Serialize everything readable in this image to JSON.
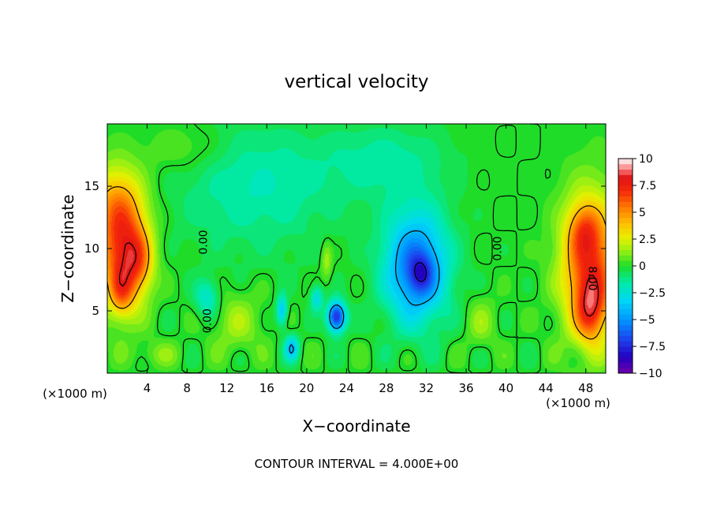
{
  "chart_data": {
    "type": "heatmap",
    "title": "vertical velocity",
    "xlabel": "X−coordinate",
    "ylabel": "Z−coordinate",
    "x_unit": "(×1000 m)",
    "y_unit": "(×1000 m)",
    "footnote": "CONTOUR INTERVAL = 4.000E+00",
    "xlim": [
      0,
      50
    ],
    "ylim": [
      0,
      20
    ],
    "x_ticks": [
      4,
      8,
      12,
      16,
      20,
      24,
      28,
      32,
      36,
      40,
      44,
      48
    ],
    "y_ticks": [
      5,
      10,
      15
    ],
    "colorbar": {
      "range": [
        -10,
        10
      ],
      "ticks": [
        "10",
        "7.5",
        "5",
        "2.5",
        "0",
        "−2.5",
        "−5",
        "−7.5",
        "−10"
      ],
      "tick_values": [
        10,
        7.5,
        5,
        2.5,
        0,
        -2.5,
        -5,
        -7.5,
        -10
      ]
    },
    "contour_labels": [
      {
        "text": "0.00",
        "x": 10,
        "z": 10.5,
        "angle": -90
      },
      {
        "text": "0.00",
        "x": 10.4,
        "z": 4.2,
        "angle": -90
      },
      {
        "text": "0.00",
        "x": 39.5,
        "z": 10,
        "angle": -90
      },
      {
        "text": "8.00",
        "x": 48.3,
        "z": 7.6,
        "angle": 90
      }
    ],
    "features": [
      {
        "x": 1.5,
        "z": 10,
        "sx": 2.4,
        "sz": 4.5,
        "w": 7
      },
      {
        "x": 3.2,
        "z": 9,
        "sx": 1.4,
        "sz": 2.5,
        "w": 3
      },
      {
        "x": 1.4,
        "z": 6.5,
        "sx": 1.2,
        "sz": 2,
        "w": 3
      },
      {
        "x": 0.5,
        "z": 14,
        "sx": 3,
        "sz": 3,
        "w": 2.5
      },
      {
        "x": 48.5,
        "z": 8.5,
        "sx": 2.8,
        "sz": 5.5,
        "w": 7
      },
      {
        "x": 48.5,
        "z": 5,
        "sx": 1.4,
        "sz": 2.4,
        "w": 4
      },
      {
        "x": 47.8,
        "z": 11.5,
        "sx": 1.5,
        "sz": 2,
        "w": 2.5
      },
      {
        "x": 31,
        "z": 8.5,
        "sx": 3.2,
        "sz": 4.5,
        "w": -6
      },
      {
        "x": 31.5,
        "z": 8,
        "sx": 1.2,
        "sz": 1.5,
        "w": -3
      },
      {
        "x": 23,
        "z": 4.5,
        "sx": 0.9,
        "sz": 1.2,
        "w": -8
      },
      {
        "x": 17.5,
        "z": 5,
        "sx": 0.5,
        "sz": 1.2,
        "w": -4
      },
      {
        "x": 18.5,
        "z": 2,
        "sx": 0.7,
        "sz": 1,
        "w": -4
      },
      {
        "x": 21,
        "z": 6,
        "sx": 0.6,
        "sz": 1,
        "w": -3
      },
      {
        "x": 15,
        "z": 15,
        "sx": 8,
        "sz": 5,
        "w": -1.8
      },
      {
        "x": 28,
        "z": 17,
        "sx": 6,
        "sz": 3,
        "w": -1.5
      },
      {
        "x": 10,
        "z": 6,
        "sx": 1.2,
        "sz": 1.5,
        "w": -2.5
      },
      {
        "x": 13,
        "z": 4,
        "sx": 2.5,
        "sz": 2.5,
        "w": 1.5
      },
      {
        "x": 22,
        "z": 9,
        "sx": 0.5,
        "sz": 1.5,
        "w": 1.8
      },
      {
        "x": 37.5,
        "z": 4,
        "sx": 1.5,
        "sz": 2,
        "w": 1.3
      },
      {
        "x": 5,
        "z": 1.5,
        "sx": 2.5,
        "sz": 1,
        "w": 1
      },
      {
        "x": 8,
        "z": 18,
        "sx": 4,
        "sz": 2,
        "w": 1
      }
    ]
  }
}
